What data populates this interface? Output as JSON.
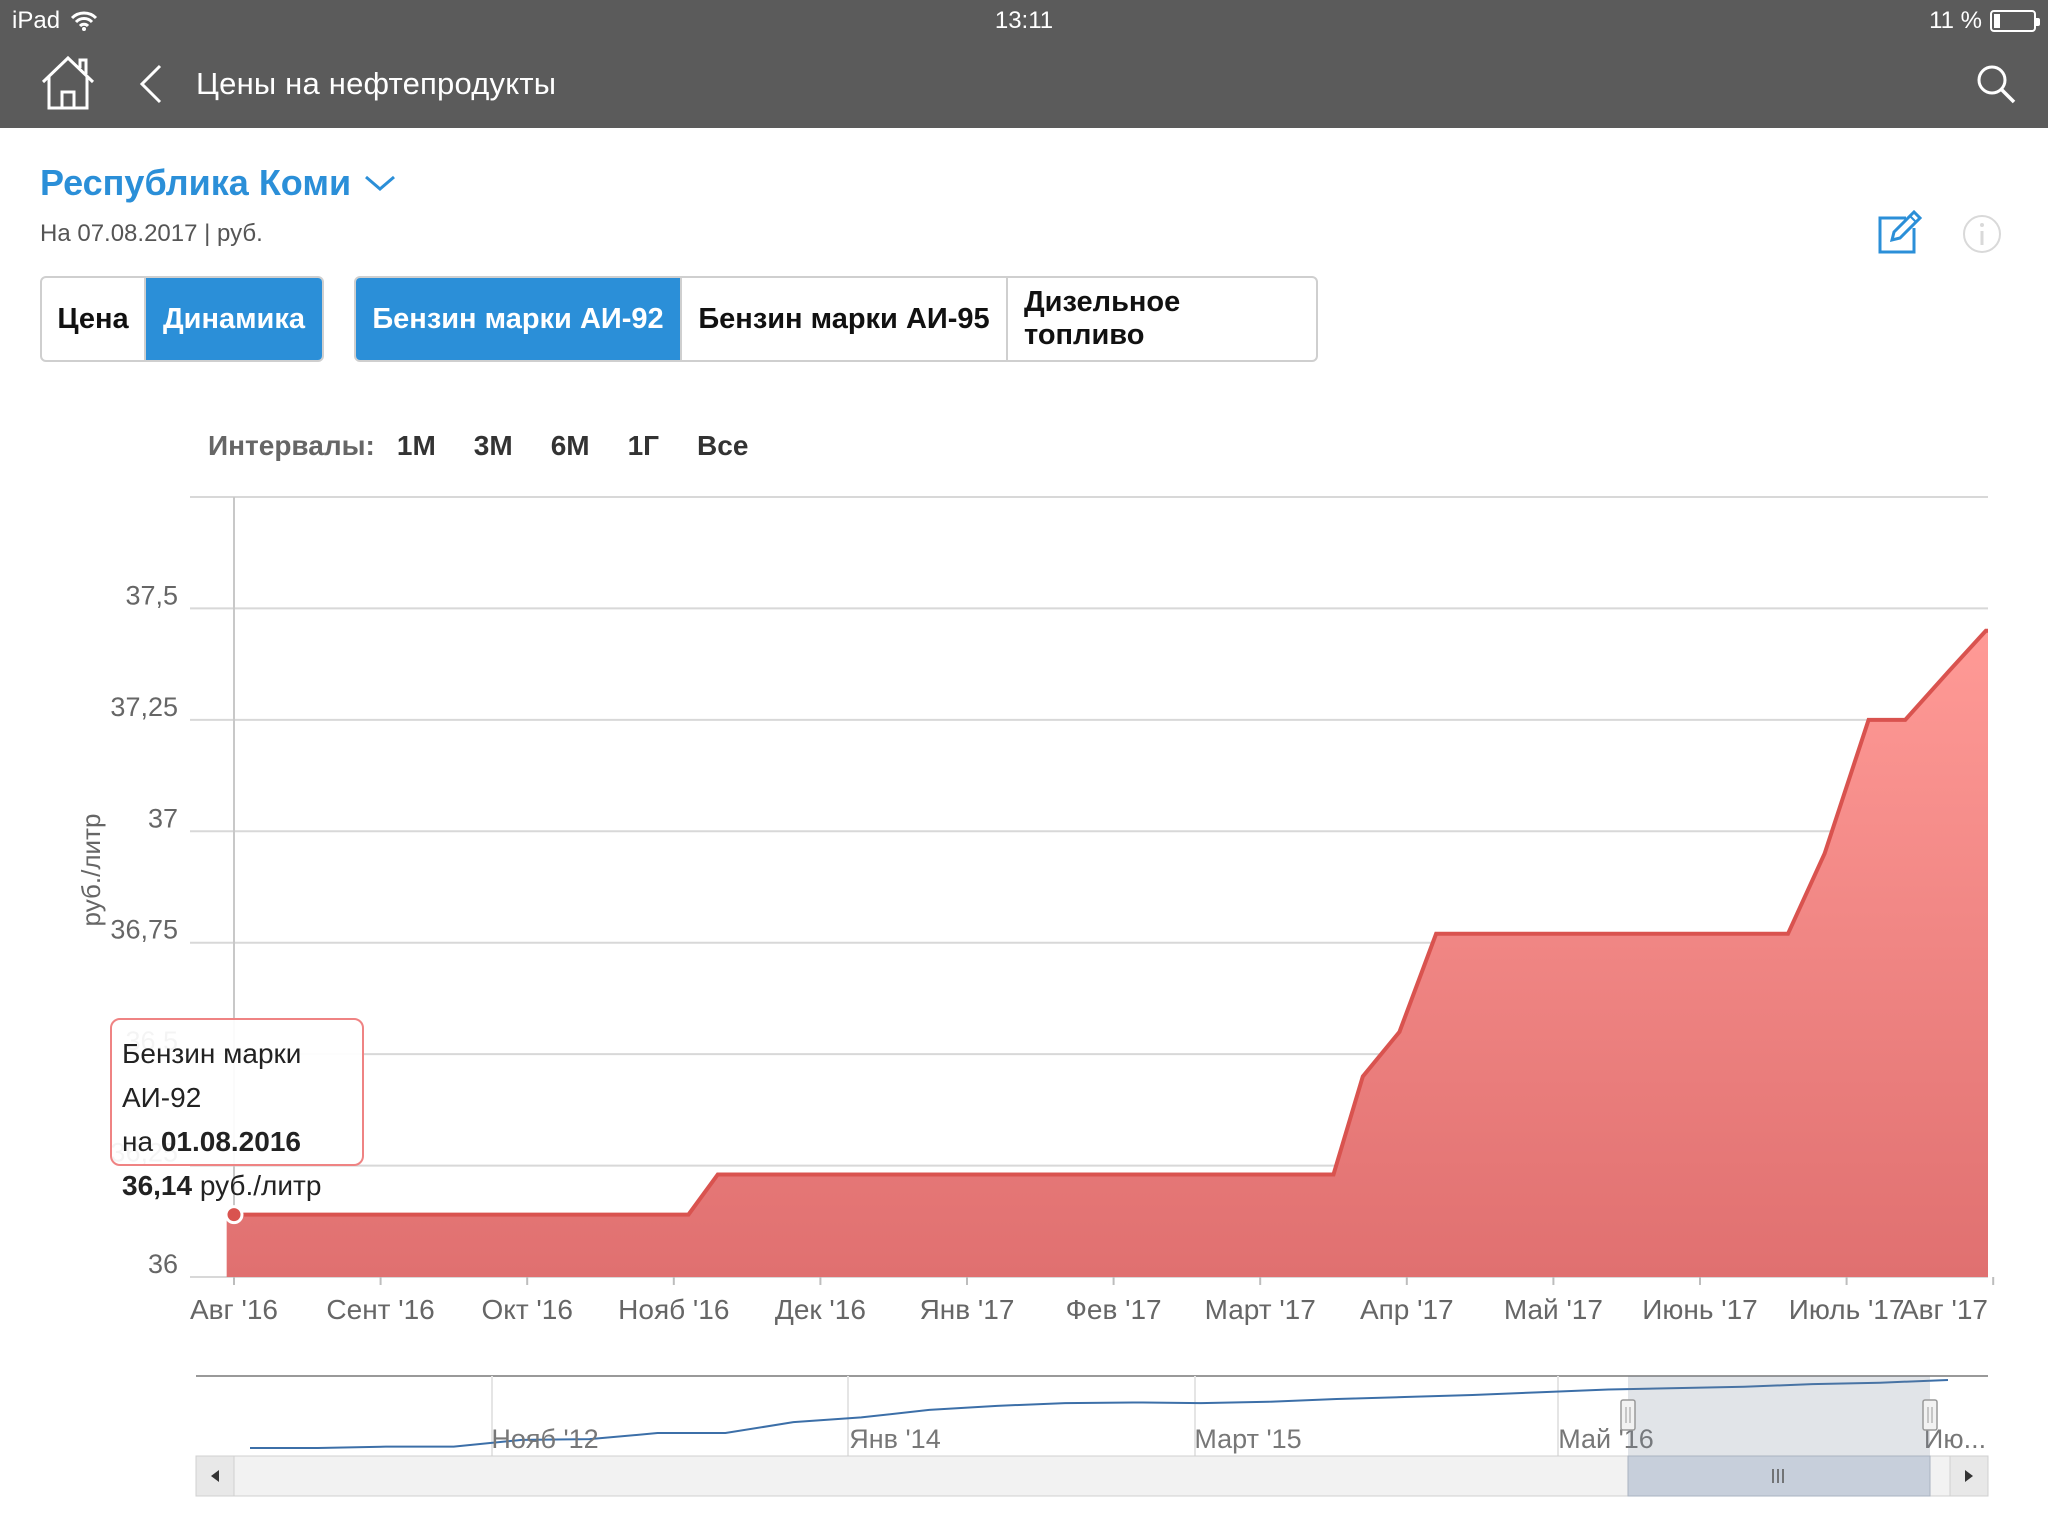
{
  "status_bar": {
    "device": "iPad",
    "time": "13:11",
    "battery": "11 %"
  },
  "nav": {
    "title": "Цены на нефтепродукты",
    "icons": [
      "home-icon",
      "back-chevron-icon",
      "search-icon"
    ]
  },
  "header": {
    "region": "Республика Коми",
    "as_of": "На 07.08.2017 | руб."
  },
  "mode_tabs": [
    {
      "label": "Цена",
      "active": false
    },
    {
      "label": "Динамика",
      "active": true
    }
  ],
  "fuel_tabs": [
    {
      "label": "Бензин марки АИ-92",
      "active": true
    },
    {
      "label": "Бензин марки АИ-95",
      "active": false
    },
    {
      "label": "Дизельное топливо",
      "active": false
    }
  ],
  "intervals": {
    "label": "Интервалы:",
    "options": [
      "1М",
      "3М",
      "6М",
      "1Г",
      "Все"
    ]
  },
  "tooltip": {
    "series": "Бензин марки АИ-92",
    "prefix": "на",
    "date": "01.08.2016",
    "value": "36,14",
    "unit": "руб./литр"
  },
  "colors": {
    "accent": "#2b8fd8",
    "series_line": "#d9534f",
    "series_fill_top": "#ff9a96",
    "series_fill_bottom": "#e07070",
    "navigator_line": "#3c6fa8"
  },
  "chart_data": {
    "type": "area",
    "ylabel": "руб./литр",
    "y_ticks": [
      "36",
      "36,25",
      "36,5",
      "36,75",
      "37",
      "37,25",
      "37,5"
    ],
    "y_tick_values": [
      36,
      36.25,
      36.5,
      36.75,
      37,
      37.25,
      37.5
    ],
    "ylim": [
      36,
      37.75
    ],
    "x_labels": [
      "Авг '16",
      "Сент '16",
      "Окт '16",
      "Нояб '16",
      "Дек '16",
      "Янв '17",
      "Фев '17",
      "Март '17",
      "Апр '17",
      "Май '17",
      "Июнь '17",
      "Июль '17",
      "Авг '17"
    ],
    "series": [
      {
        "name": "Бензин марки АИ-92",
        "x_months": [
          -0.05,
          0.0,
          3.1,
          3.3,
          7.5,
          7.7,
          7.95,
          8.2,
          10.6,
          10.85,
          11.15,
          11.4,
          11.7,
          11.95,
          13.0
        ],
        "values": [
          36.14,
          36.14,
          36.14,
          36.23,
          36.23,
          36.45,
          36.55,
          36.77,
          36.77,
          36.95,
          37.25,
          37.25,
          37.36,
          37.45,
          37.45
        ]
      }
    ],
    "navigator": {
      "x_labels": [
        "Нояб '12",
        "Янв '14",
        "Март '15",
        "Май '16",
        "Ию..."
      ],
      "values": [
        0.0,
        0.0,
        0.02,
        0.02,
        0.12,
        0.13,
        0.22,
        0.22,
        0.38,
        0.45,
        0.56,
        0.62,
        0.66,
        0.67,
        0.66,
        0.68,
        0.72,
        0.75,
        0.78,
        0.82,
        0.86,
        0.88,
        0.9,
        0.94,
        0.96,
        1.0
      ]
    }
  }
}
